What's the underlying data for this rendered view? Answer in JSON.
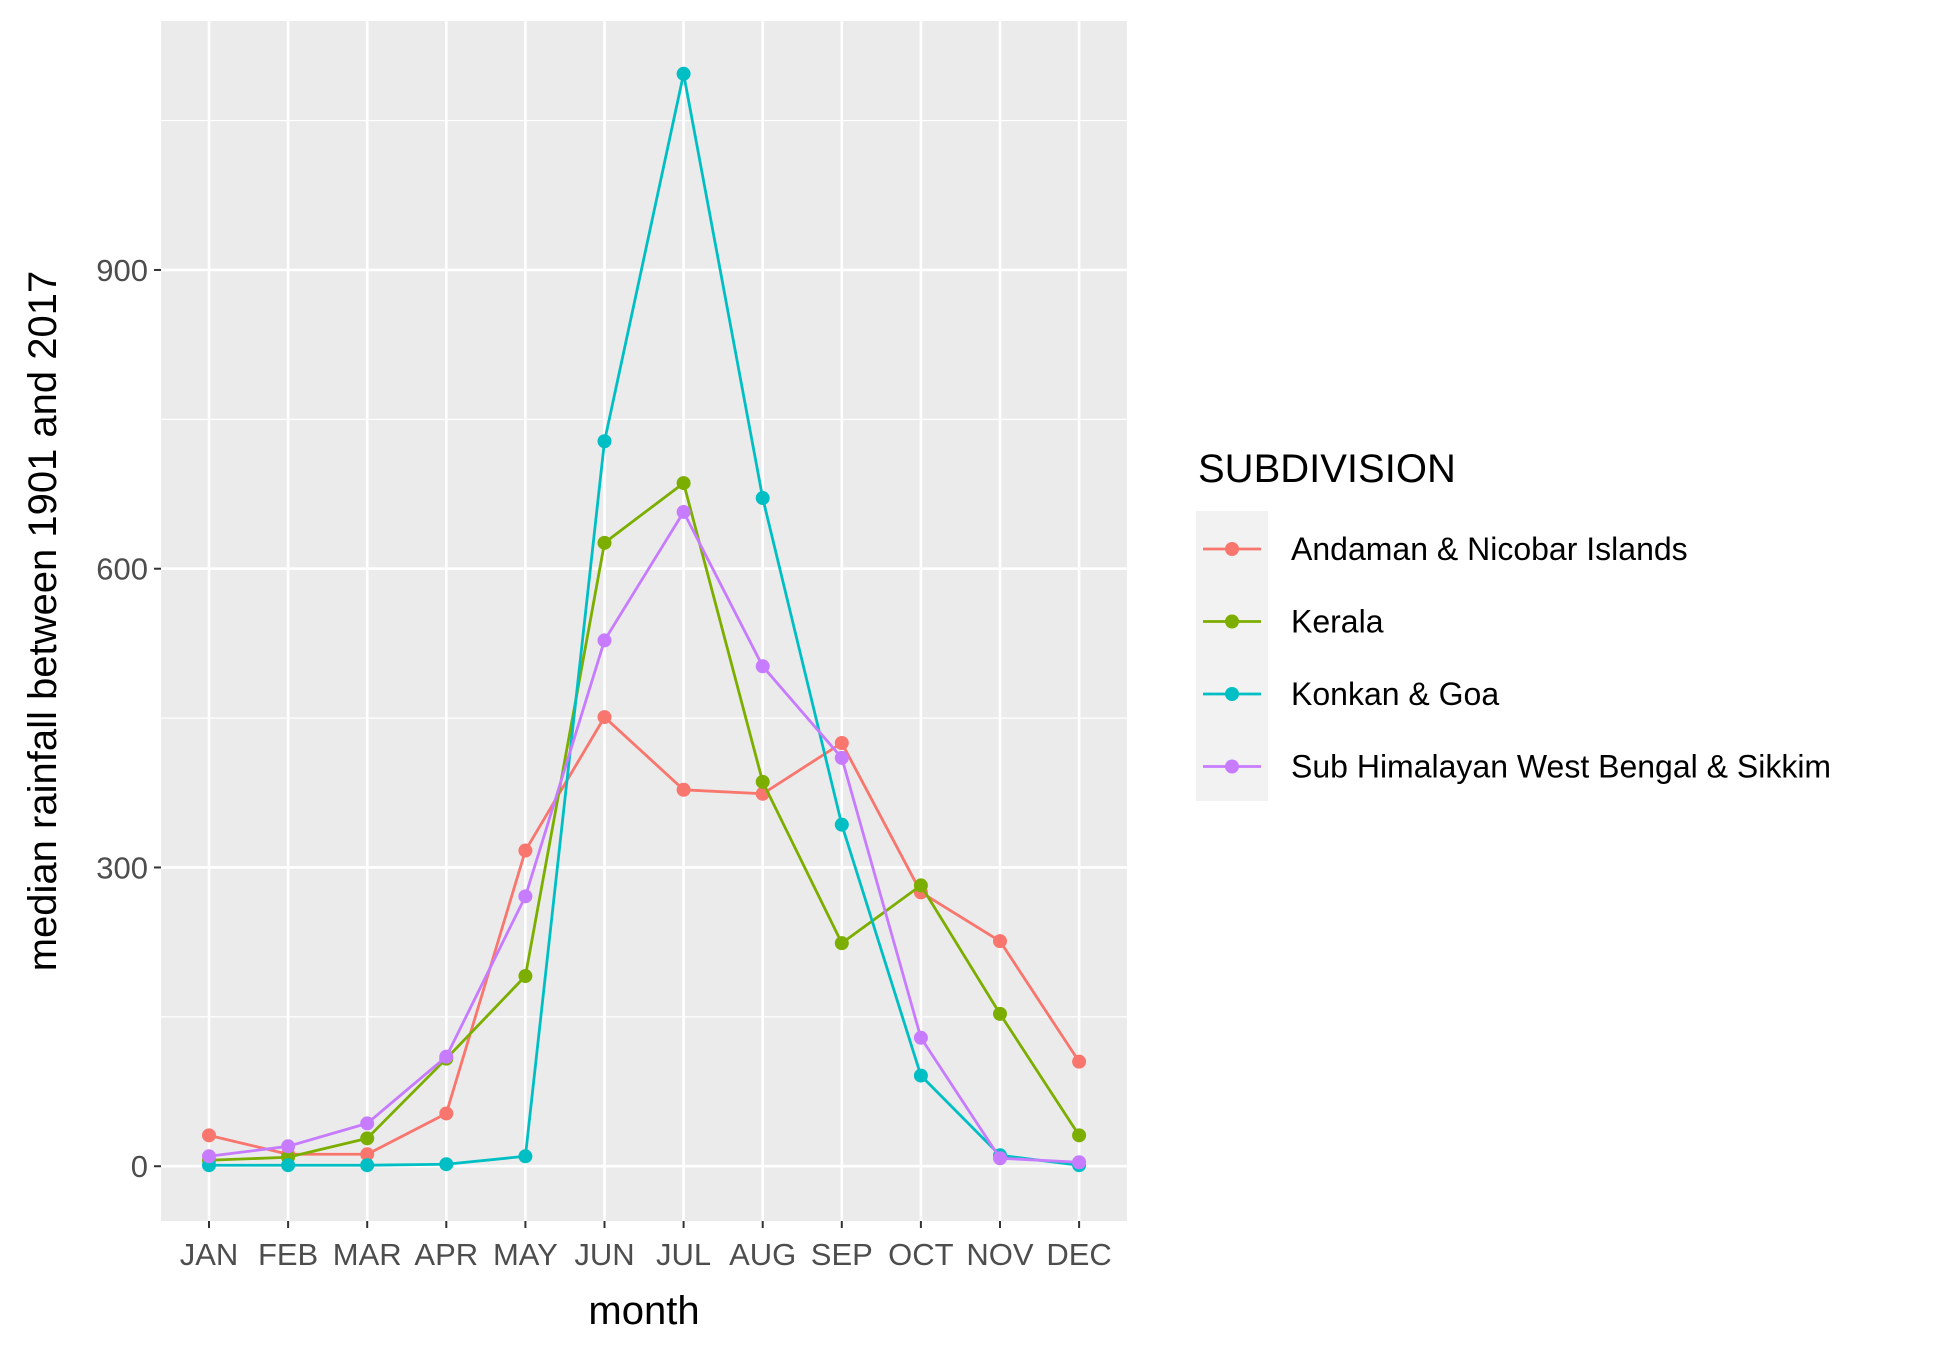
{
  "chart_data": {
    "type": "line",
    "title": "",
    "xlabel": "month",
    "ylabel": "median rainfall between 1901 and 2017",
    "categories": [
      "JAN",
      "FEB",
      "MAR",
      "APR",
      "MAY",
      "JUN",
      "JUL",
      "AUG",
      "SEP",
      "OCT",
      "NOV",
      "DEC"
    ],
    "yticks": [
      0,
      300,
      600,
      900
    ],
    "ylim": [
      -55,
      1150
    ],
    "grid": true,
    "legend": {
      "title": "SUBDIVISION",
      "placement": "right"
    },
    "series": [
      {
        "name": "Andaman & Nicobar Islands",
        "color": "#F8766D",
        "values": [
          31,
          12,
          12,
          53,
          317,
          451,
          378,
          374,
          425,
          275,
          226,
          105
        ]
      },
      {
        "name": "Kerala",
        "color": "#7CAE00",
        "values": [
          6,
          9,
          28,
          108,
          191,
          626,
          686,
          386,
          224,
          282,
          153,
          31
        ]
      },
      {
        "name": "Konkan & Goa",
        "color": "#00BFC4",
        "values": [
          1,
          1,
          1,
          2,
          10,
          728,
          1097,
          671,
          343,
          91,
          11,
          1
        ]
      },
      {
        "name": "Sub Himalayan West Bengal & Sikkim",
        "color": "#C77CFF",
        "values": [
          10,
          20,
          43,
          110,
          271,
          528,
          657,
          502,
          410,
          129,
          8,
          4
        ]
      }
    ]
  }
}
